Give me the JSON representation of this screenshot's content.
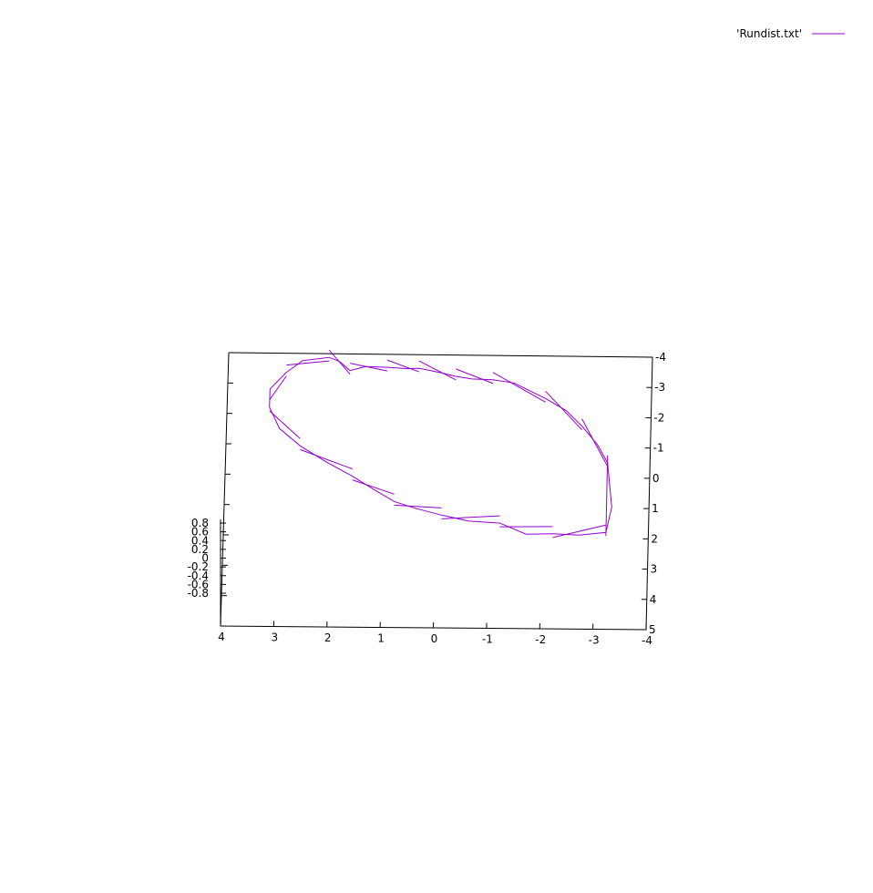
{
  "chart_data": {
    "type": "line",
    "subtype": "3d-surface-lines",
    "title": "",
    "xlabel": "",
    "ylabel": "",
    "zlabel": "",
    "x_ticks": [
      "4",
      "3",
      "2",
      "1",
      "0",
      "-1",
      "-2",
      "-3",
      "-4"
    ],
    "y_ticks": [
      "-4",
      "-3",
      "-2",
      "-1",
      "0",
      "1",
      "2",
      "3",
      "4",
      "5"
    ],
    "z_ticks": [
      "0.8",
      "0.6",
      "0.4",
      "0.2",
      "0",
      "-0.2",
      "-0.4",
      "-0.6",
      "-0.8"
    ],
    "xlim": [
      -4,
      4
    ],
    "ylim": [
      -4,
      5
    ],
    "zlim": [
      -1,
      1
    ],
    "grid": false,
    "legend_position": "top-right",
    "series": [
      {
        "name": "'Rundist.txt'",
        "color": "#9400d3",
        "points": [
          [
            2.9,
            -3.3,
            0.4
          ],
          [
            2.6,
            -3.6,
            0.9
          ],
          [
            2.1,
            -3.7,
            1.0
          ],
          [
            1.9,
            -3.6,
            0.8
          ],
          [
            1.7,
            -3.4,
            0.3
          ],
          [
            1.4,
            -3.5,
            0.5
          ],
          [
            1.0,
            -3.5,
            0.4
          ],
          [
            0.6,
            -3.5,
            0.2
          ],
          [
            0.4,
            -3.5,
            0.3
          ],
          [
            0.0,
            -3.4,
            0.1
          ],
          [
            -0.3,
            -3.3,
            0.0
          ],
          [
            -0.6,
            -3.2,
            0.1
          ],
          [
            -1.0,
            -3.2,
            0.0
          ],
          [
            -1.4,
            -3.1,
            0.0
          ],
          [
            -2.0,
            -2.6,
            0.0
          ],
          [
            -2.4,
            -2.2,
            0.0
          ],
          [
            -2.7,
            -1.7,
            0.0
          ],
          [
            -3.0,
            -1.1,
            0.0
          ],
          [
            -3.2,
            -0.5,
            0.0
          ],
          [
            -3.3,
            1.0,
            0.2
          ],
          [
            -3.2,
            1.8,
            0.0
          ],
          [
            -2.7,
            1.9,
            0.0
          ],
          [
            -2.2,
            1.9,
            0.2
          ],
          [
            -1.7,
            1.9,
            0.1
          ],
          [
            -1.2,
            1.6,
            0.4
          ],
          [
            -0.6,
            1.5,
            0.2
          ],
          [
            -0.1,
            1.3,
            0.1
          ],
          [
            0.4,
            1.1,
            0.2
          ],
          [
            0.8,
            0.9,
            0.3
          ],
          [
            1.2,
            0.5,
            0.3
          ],
          [
            1.6,
            0.1,
            0.4
          ],
          [
            2.1,
            -0.4,
            0.2
          ],
          [
            2.6,
            -0.9,
            0.3
          ],
          [
            3.0,
            -1.5,
            0.1
          ],
          [
            3.2,
            -2.2,
            0.1
          ],
          [
            3.2,
            -2.8,
            0.1
          ],
          [
            2.9,
            -3.3,
            0.4
          ]
        ]
      }
    ]
  }
}
